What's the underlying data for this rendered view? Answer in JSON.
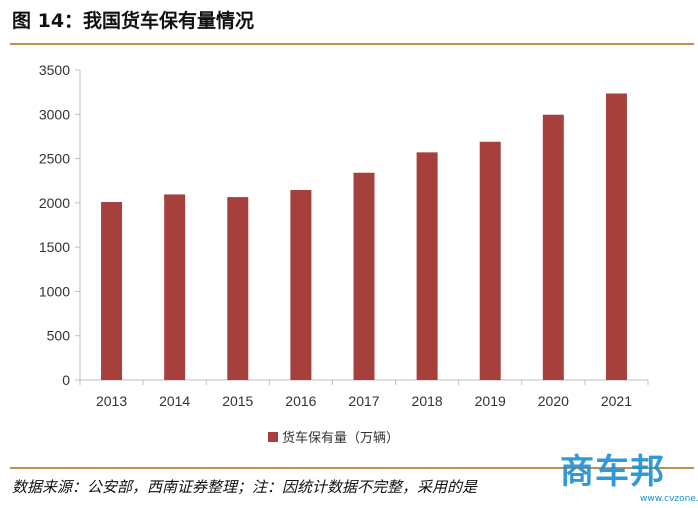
{
  "header": {
    "title": "图 14：我国货车保有量情况"
  },
  "chart_data": {
    "type": "bar",
    "categories": [
      "2013",
      "2014",
      "2015",
      "2016",
      "2017",
      "2018",
      "2019",
      "2020",
      "2021"
    ],
    "series": [
      {
        "name": "货车保有量（万辆）",
        "values": [
          2010,
          2095,
          2065,
          2145,
          2340,
          2570,
          2690,
          2995,
          3235
        ],
        "color": "#a5403d"
      }
    ],
    "ylim": [
      0,
      3500
    ],
    "yticks": [
      "0",
      "500",
      "1000",
      "1500",
      "2000",
      "2500",
      "3000",
      "3500"
    ],
    "legend_position": "bottom",
    "grid": false
  },
  "footer": {
    "source": "数据来源：公安部，西南证券整理；注：因统计数据不完整，采用的是",
    "watermark": "商车邦",
    "watermark_url": "www.cvzone.com.cn"
  }
}
